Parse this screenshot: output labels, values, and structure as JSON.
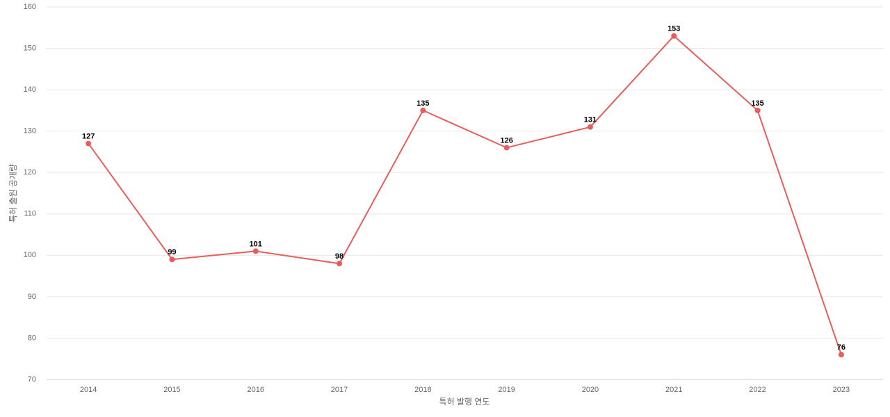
{
  "chart_data": {
    "type": "line",
    "x_label": "특허 발행 연도",
    "y_label": "특허 출원 공개량",
    "categories": [
      "2014",
      "2015",
      "2016",
      "2017",
      "2018",
      "2019",
      "2020",
      "2021",
      "2022",
      "2023"
    ],
    "series": [
      {
        "color": "#e85c5c",
        "values": [
          127,
          99,
          101,
          98,
          135,
          126,
          131,
          153,
          135,
          76
        ]
      }
    ],
    "ylim": [
      70,
      160
    ],
    "yticks": [
      70,
      80,
      90,
      100,
      110,
      120,
      130,
      140,
      150,
      160
    ],
    "grid": true
  }
}
